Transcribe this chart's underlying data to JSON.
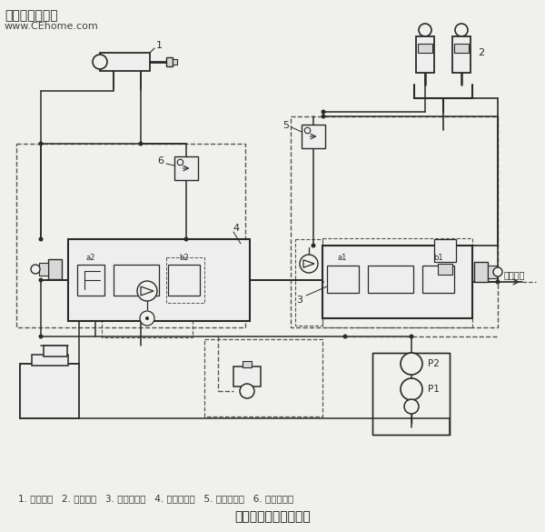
{
  "title": "斗杆与动臂合流原理图",
  "watermark_line1": "铁甲工程机械网",
  "watermark_line2": "www.CEhome.com",
  "legend": "1. 斗杆油缸   2. 动臂油缸   3. 动臂换向阀   4. 斗杆换向阀   5. 动臂逻辑阀   6. 斗杆逻辑阀",
  "label_main_valve": "主换向阀",
  "bg_color": "#f0f0ec",
  "line_color": "#2a2a2a",
  "dash_color": "#555555",
  "gray_fill": "#d8d8d8",
  "light_fill": "#eeeeee"
}
